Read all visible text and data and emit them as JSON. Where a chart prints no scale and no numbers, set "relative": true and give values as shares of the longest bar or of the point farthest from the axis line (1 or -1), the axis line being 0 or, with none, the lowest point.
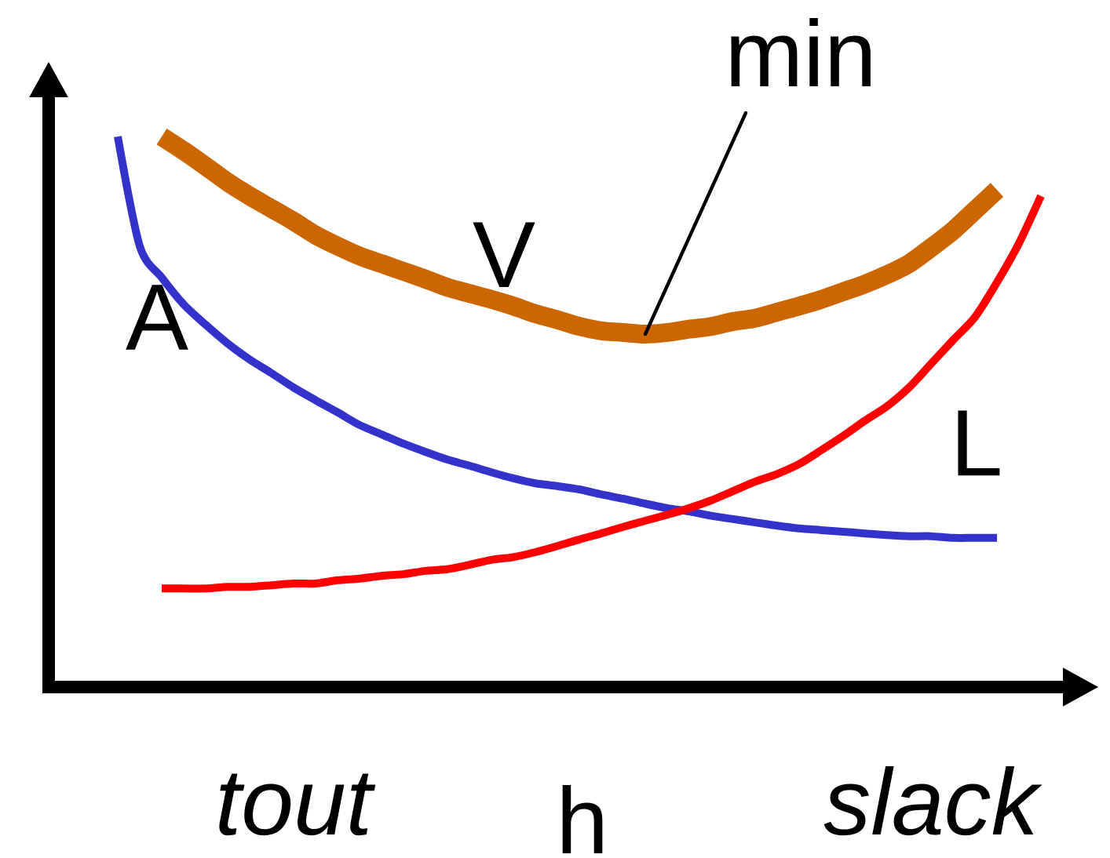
{
  "chart_data": {
    "type": "line",
    "relative": true,
    "xlabel": "h",
    "categories": [
      null,
      null,
      null,
      null,
      null,
      null,
      null,
      null,
      "tout",
      null,
      null,
      null,
      null,
      null,
      null,
      null,
      null,
      null,
      null,
      null,
      null,
      null,
      null,
      null,
      null,
      null,
      null,
      null,
      null,
      null,
      null,
      null,
      null,
      null,
      null,
      null,
      null,
      "slack",
      null,
      null,
      null,
      null,
      null
    ],
    "series": [
      {
        "name": "A",
        "color": "#3333cc",
        "values": [
          1,
          0.801,
          0.744,
          0.695,
          0.658,
          0.624,
          0.595,
          0.57,
          0.544,
          0.521,
          0.499,
          0.476,
          0.459,
          0.442,
          0.427,
          0.413,
          0.402,
          0.39,
          0.379,
          0.37,
          0.365,
          0.359,
          0.35,
          0.342,
          0.333,
          0.325,
          0.319,
          0.311,
          0.305,
          0.299,
          0.293,
          0.288,
          0.285,
          0.282,
          0.279,
          0.276,
          0.274,
          0.274,
          0.271,
          0.271,
          0.271,
          null,
          null
        ]
      },
      {
        "name": "V",
        "color": "#cc6600",
        "values": [
          null,
          null,
          1,
          0.974,
          0.946,
          0.917,
          0.892,
          0.869,
          0.846,
          0.821,
          0.801,
          0.783,
          0.769,
          0.755,
          0.741,
          0.726,
          0.715,
          0.704,
          0.692,
          0.678,
          0.667,
          0.655,
          0.647,
          0.644,
          0.641,
          0.644,
          0.65,
          0.655,
          0.664,
          0.67,
          0.681,
          0.692,
          0.704,
          0.718,
          0.732,
          0.749,
          0.769,
          0.798,
          0.829,
          0.866,
          0.903,
          null,
          null
        ]
      },
      {
        "name": "L",
        "color": "#ff0000",
        "values": [
          null,
          null,
          0.179,
          0.179,
          0.179,
          0.182,
          0.182,
          0.185,
          0.188,
          0.188,
          0.194,
          0.197,
          0.202,
          0.205,
          0.211,
          0.214,
          0.222,
          0.231,
          0.236,
          0.245,
          0.256,
          0.268,
          0.279,
          0.291,
          0.302,
          0.313,
          0.325,
          0.339,
          0.356,
          0.373,
          0.387,
          0.405,
          0.43,
          0.456,
          0.484,
          0.51,
          0.544,
          0.587,
          0.63,
          0.672,
          0.735,
          0.806,
          0.892
        ]
      }
    ],
    "annotations": [
      "min"
    ]
  }
}
